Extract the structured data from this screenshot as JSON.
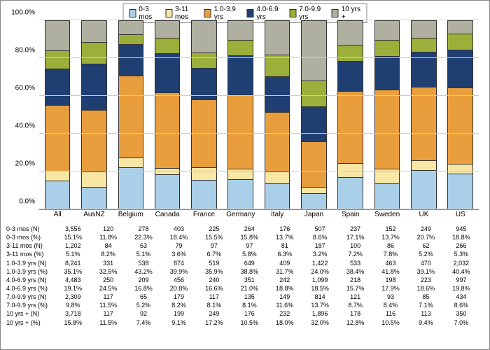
{
  "chart": {
    "type": "stacked-bar-100",
    "background_color": "#ffffff",
    "grid_color": "#cccccc",
    "axis_color": "#888888",
    "ylim": [
      0,
      100
    ],
    "ytick_step": 20,
    "yticks": [
      "0.0%",
      "20.0%",
      "40.0%",
      "60.0%",
      "80.0%",
      "100.0%"
    ],
    "series": [
      {
        "key": "s0",
        "label": "0-3 mos",
        "color": "#a9cfe9"
      },
      {
        "key": "s1",
        "label": "3-11 mos",
        "color": "#f8e6a4"
      },
      {
        "key": "s2",
        "label": "1.0-3.9 yrs",
        "color": "#e99e3d"
      },
      {
        "key": "s3",
        "label": "4.0-6.9 yrs",
        "color": "#1f3f72"
      },
      {
        "key": "s4",
        "label": "7.0-9.9 yrs",
        "color": "#9caf3a"
      },
      {
        "key": "s5",
        "label": "10 yrs +",
        "color": "#b0b0a0"
      }
    ],
    "categories": [
      "All",
      "AusNZ",
      "Belgium",
      "Canada",
      "France",
      "Germany",
      "Italy",
      "Japan",
      "Spain",
      "Sweden",
      "UK",
      "US"
    ],
    "percentages": {
      "s0": [
        15.1,
        11.8,
        22.3,
        18.4,
        15.5,
        15.8,
        13.7,
        8.6,
        17.1,
        13.7,
        20.7,
        18.8
      ],
      "s1": [
        5.1,
        8.2,
        5.1,
        3.6,
        6.7,
        5.8,
        6.3,
        3.2,
        7.2,
        7.8,
        5.2,
        5.3
      ],
      "s2": [
        35.1,
        32.5,
        43.2,
        39.9,
        35.9,
        38.8,
        31.7,
        24.0,
        38.4,
        41.8,
        39.1,
        40.4
      ],
      "s3": [
        19.1,
        24.5,
        16.8,
        20.8,
        16.6,
        21.0,
        18.8,
        18.5,
        15.7,
        17.9,
        18.6,
        19.8
      ],
      "s4": [
        9.8,
        11.5,
        5.2,
        8.2,
        8.1,
        8.1,
        11.6,
        13.7,
        8.7,
        8.4,
        7.1,
        8.6
      ],
      "s5": [
        15.8,
        11.5,
        7.4,
        9.1,
        17.2,
        10.5,
        18.0,
        32.0,
        12.8,
        10.5,
        9.4,
        7.0
      ]
    },
    "table_rows": [
      {
        "label": "0-3 mos    (N)",
        "values": [
          "3,556",
          "120",
          "278",
          "403",
          "225",
          "264",
          "176",
          "507",
          "237",
          "152",
          "249",
          "945"
        ]
      },
      {
        "label": "0-3 mos    (%)",
        "values": [
          "15.1%",
          "11.8%",
          "22.3%",
          "18.4%",
          "15.5%",
          "15.8%",
          "13.7%",
          "8.6%",
          "17.1%",
          "13.7%",
          "20.7%",
          "18.8%"
        ]
      },
      {
        "label": "3-11 mos  (N)",
        "values": [
          "1,202",
          "84",
          "63",
          "79",
          "97",
          "97",
          "81",
          "187",
          "100",
          "86",
          "62",
          "266"
        ]
      },
      {
        "label": "3-11 mos  (%)",
        "values": [
          "5.1%",
          "8.2%",
          "5.1%",
          "3.6%",
          "6.7%",
          "5.8%",
          "6.3%",
          "3.2%",
          "7.2%",
          "7.8%",
          "5.2%",
          "5.3%"
        ]
      },
      {
        "label": "1.0-3.9 yrs (N)",
        "values": [
          "8,241",
          "331",
          "538",
          "874",
          "519",
          "649",
          "409",
          "1,422",
          "533",
          "463",
          "470",
          "2,032"
        ]
      },
      {
        "label": "1.0-3.9 yrs (%)",
        "values": [
          "35.1%",
          "32.5%",
          "43.2%",
          "39.9%",
          "35.9%",
          "38.8%",
          "31.7%",
          "24.0%",
          "38.4%",
          "41.8%",
          "39.1%",
          "40.4%"
        ]
      },
      {
        "label": "4.0-6.9 yrs (N)",
        "values": [
          "4,483",
          "250",
          "209",
          "456",
          "240",
          "351",
          "242",
          "1,099",
          "218",
          "198",
          "223",
          "997"
        ]
      },
      {
        "label": "4.0-6.9 yrs (%)",
        "values": [
          "19.1%",
          "24.5%",
          "16.8%",
          "20.8%",
          "16.6%",
          "21.0%",
          "18.8%",
          "18.5%",
          "15.7%",
          "17.9%",
          "18.6%",
          "19.8%"
        ]
      },
      {
        "label": "7.0-9.9 yrs (N)",
        "values": [
          "2,309",
          "117",
          "65",
          "179",
          "117",
          "135",
          "149",
          "814",
          "121",
          "93",
          "85",
          "434"
        ]
      },
      {
        "label": "7.0-9.9 yrs (%)",
        "values": [
          "9.8%",
          "11.5%",
          "5.2%",
          "8.2%",
          "8.1%",
          "8.1%",
          "11.6%",
          "13.7%",
          "8.7%",
          "8.4%",
          "7.1%",
          "8.6%"
        ]
      },
      {
        "label": "10 yrs +   (N)",
        "values": [
          "3,718",
          "117",
          "92",
          "199",
          "249",
          "176",
          "232",
          "1,896",
          "178",
          "116",
          "113",
          "350"
        ]
      },
      {
        "label": "10 yrs +   (%)",
        "values": [
          "15.8%",
          "11.5%",
          "7.4%",
          "9.1%",
          "17.2%",
          "10.5%",
          "18.0%",
          "32.0%",
          "12.8%",
          "10.5%",
          "9.4%",
          "7.0%"
        ]
      }
    ]
  }
}
